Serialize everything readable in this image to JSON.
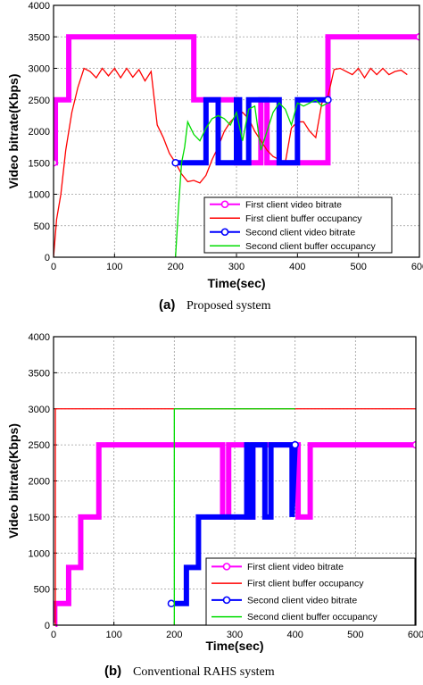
{
  "chart_data": [
    {
      "type": "line",
      "xlabel": "Time(sec)",
      "ylabel": "Video bitrate(Kbps)",
      "xlim": [
        0,
        600
      ],
      "ylim": [
        0,
        4000
      ],
      "xticks": [
        "0",
        "100",
        "200",
        "300",
        "400",
        "500",
        "600"
      ],
      "yticks": [
        "0",
        "500",
        "1000",
        "1500",
        "2000",
        "2500",
        "3000",
        "3500",
        "4000"
      ],
      "grid": true,
      "legend_position": "bottom-right",
      "caption_letter": "(a)",
      "caption_text": "Proposed system",
      "series": [
        {
          "name": "First client video bitrate",
          "color": "#ff00ff",
          "style": "thick-marker",
          "x": [
            0,
            3,
            3,
            25,
            25,
            230,
            230,
            300,
            300,
            340,
            340,
            350,
            350,
            450,
            450,
            600
          ],
          "y": [
            1500,
            1500,
            2500,
            2500,
            3500,
            3500,
            2500,
            2500,
            1500,
            1500,
            2500,
            2500,
            1500,
            1500,
            3500,
            3500
          ]
        },
        {
          "name": "First client buffer occupancy",
          "color": "#ff0000",
          "style": "line",
          "x": [
            0,
            5,
            12,
            20,
            30,
            40,
            50,
            60,
            70,
            80,
            90,
            100,
            110,
            120,
            130,
            140,
            150,
            160,
            170,
            180,
            190,
            200,
            210,
            220,
            230,
            240,
            250,
            260,
            270,
            280,
            290,
            300,
            310,
            320,
            330,
            340,
            350,
            360,
            370,
            380,
            390,
            400,
            410,
            420,
            430,
            440,
            450,
            460,
            470,
            480,
            490,
            500,
            510,
            520,
            530,
            540,
            550,
            560,
            570,
            580
          ],
          "y": [
            0,
            600,
            1000,
            1700,
            2300,
            2700,
            3000,
            2950,
            2850,
            3000,
            2880,
            3000,
            2850,
            3000,
            2860,
            2980,
            2800,
            2950,
            2100,
            1900,
            1650,
            1500,
            1320,
            1200,
            1220,
            1180,
            1300,
            1550,
            1750,
            2000,
            2150,
            2250,
            2300,
            2200,
            2000,
            1850,
            1700,
            1600,
            1550,
            1500,
            2050,
            2150,
            2150,
            2000,
            1900,
            2450,
            2550,
            2980,
            3000,
            2950,
            2900,
            3000,
            2850,
            3000,
            2900,
            3000,
            2900,
            2950,
            2970,
            2900
          ]
        },
        {
          "name": "Second client video bitrate",
          "color": "#0000ff",
          "style": "thick-marker",
          "x": [
            200,
            250,
            250,
            270,
            270,
            300,
            300,
            305,
            305,
            320,
            320,
            370,
            370,
            400,
            400,
            450
          ],
          "y": [
            1500,
            1500,
            2500,
            2500,
            1500,
            1500,
            2500,
            2500,
            1500,
            1500,
            2500,
            2500,
            1500,
            1500,
            2500,
            2500
          ]
        },
        {
          "name": "Second client buffer occupancy",
          "color": "#00dd00",
          "style": "line",
          "x": [
            200,
            205,
            210,
            215,
            220,
            230,
            240,
            250,
            260,
            270,
            280,
            290,
            300,
            310,
            320,
            330,
            340,
            350,
            360,
            370,
            380,
            390,
            400,
            410,
            420,
            430,
            440,
            450
          ],
          "y": [
            0,
            800,
            1500,
            1750,
            2150,
            1950,
            1850,
            2050,
            2200,
            2250,
            2200,
            2100,
            2300,
            1850,
            2350,
            2400,
            1700,
            2000,
            2300,
            2450,
            2350,
            2100,
            2450,
            2400,
            2450,
            2500,
            2400,
            2450
          ]
        }
      ]
    },
    {
      "type": "line",
      "xlabel": "Time(sec)",
      "ylabel": "Video bitrate(Kbps)",
      "xlim": [
        0,
        600
      ],
      "ylim": [
        0,
        4000
      ],
      "xticks": [
        "0",
        "100",
        "200",
        "300",
        "400",
        "500",
        "600"
      ],
      "yticks": [
        "0",
        "500",
        "1000",
        "1500",
        "2000",
        "2500",
        "3000",
        "3500",
        "4000"
      ],
      "grid": true,
      "legend_position": "bottom-right",
      "caption_letter": "(b)",
      "caption_text": "Conventional RAHS system",
      "series": [
        {
          "name": "First client video bitrate",
          "color": "#ff00ff",
          "style": "thick-marker",
          "x": [
            0,
            2,
            2,
            25,
            25,
            45,
            45,
            75,
            75,
            280,
            280,
            290,
            290,
            320,
            320,
            330,
            330,
            405,
            405,
            425,
            425,
            600
          ],
          "y": [
            0,
            0,
            300,
            300,
            800,
            800,
            1500,
            1500,
            2500,
            2500,
            1500,
            1500,
            2500,
            2500,
            1500,
            1500,
            2500,
            2500,
            1500,
            1500,
            2500,
            2500
          ]
        },
        {
          "name": "First client buffer occupancy",
          "color": "#ff0000",
          "style": "line",
          "x": [
            0,
            3,
            3,
            600
          ],
          "y": [
            0,
            0,
            3000,
            3000
          ]
        },
        {
          "name": "Second client video bitrate",
          "color": "#0000ff",
          "style": "thick-marker",
          "x": [
            195,
            220,
            220,
            240,
            240,
            320,
            320,
            325,
            325,
            330,
            330,
            350,
            350,
            360,
            360,
            395,
            395,
            400
          ],
          "y": [
            300,
            300,
            800,
            800,
            1500,
            1500,
            2500,
            2500,
            1500,
            1500,
            2500,
            2500,
            1500,
            1500,
            2500,
            2500,
            1500,
            2500
          ]
        },
        {
          "name": "Second client buffer occupancy",
          "color": "#00dd00",
          "style": "line",
          "x": [
            200,
            200,
            400
          ],
          "y": [
            0,
            3000,
            3000
          ]
        }
      ]
    }
  ]
}
